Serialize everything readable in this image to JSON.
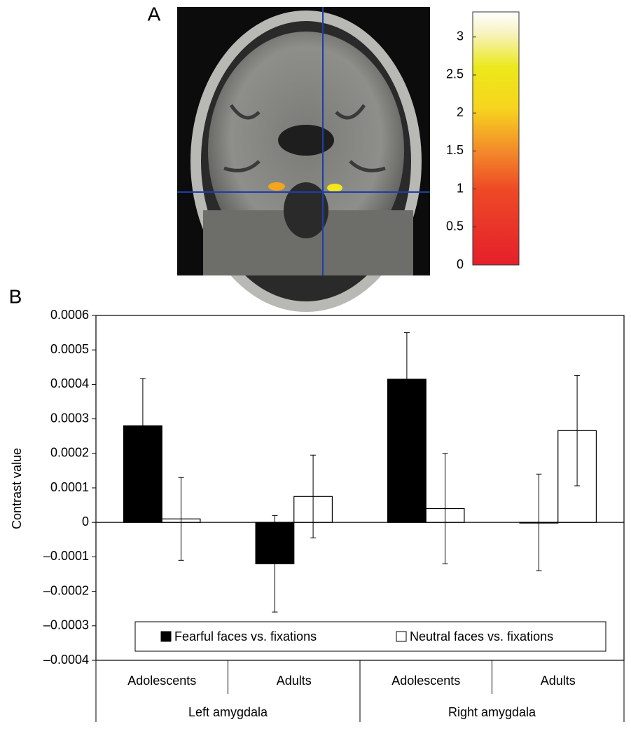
{
  "image_panel": {
    "label": "A",
    "colorbar": {
      "lim": [
        0,
        3.33
      ],
      "ticks": [
        0,
        0.5,
        1,
        1.5,
        2,
        2.5,
        3
      ]
    }
  },
  "chart_data": {
    "type": "bar",
    "panel_label": "B",
    "ylabel": "Contrast value",
    "categories": [
      "Adolescents",
      "Adults",
      "Adolescents",
      "Adults"
    ],
    "group_labels": [
      "Left amygdala",
      "Right amygdala"
    ],
    "series": [
      {
        "name": "Fearful faces vs. fixations",
        "color": "#000000",
        "values": [
          0.00028,
          -0.00012,
          0.000415,
          0
        ],
        "errors": [
          0.000137,
          0.00014,
          0.000135,
          0.00014
        ]
      },
      {
        "name": "Neutral faces vs. fixations",
        "color": "#ffffff",
        "values": [
          1e-05,
          7.5e-05,
          4e-05,
          0.000266
        ],
        "errors": [
          0.00012,
          0.00012,
          0.00016,
          0.00016
        ]
      }
    ],
    "ylim": [
      -0.0004,
      0.0006
    ],
    "yticks": [
      {
        "value": -0.0004,
        "label": "–0.0004"
      },
      {
        "value": -0.0003,
        "label": "–0.0003"
      },
      {
        "value": -0.0002,
        "label": "–0.0002"
      },
      {
        "value": -0.0001,
        "label": "–0.0001"
      },
      0,
      0.0001,
      0.0002,
      0.0003,
      0.0004,
      0.0005,
      0.0006
    ],
    "legend": "bottom"
  }
}
